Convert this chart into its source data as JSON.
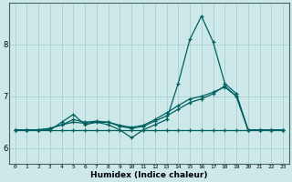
{
  "xlabel": "Humidex (Indice chaleur)",
  "background_color": "#cce8e8",
  "grid_color": "#aacfcf",
  "line_color": "#006060",
  "xlim": [
    -0.5,
    23.5
  ],
  "ylim": [
    5.7,
    8.8
  ],
  "yticks": [
    6,
    7,
    8
  ],
  "xticks": [
    0,
    1,
    2,
    3,
    4,
    5,
    6,
    7,
    8,
    9,
    10,
    11,
    12,
    13,
    14,
    15,
    16,
    17,
    18,
    19,
    20,
    21,
    22,
    23
  ],
  "series": [
    [
      6.35,
      6.35,
      6.35,
      6.35,
      6.35,
      6.35,
      6.35,
      6.35,
      6.35,
      6.35,
      6.35,
      6.35,
      6.35,
      6.35,
      6.35,
      6.35,
      6.35,
      6.35,
      6.35,
      6.35,
      6.35,
      6.35,
      6.35,
      6.35
    ],
    [
      6.35,
      6.35,
      6.35,
      6.35,
      6.5,
      6.65,
      6.45,
      6.5,
      6.45,
      6.35,
      6.2,
      6.35,
      6.45,
      6.55,
      7.25,
      8.1,
      8.55,
      8.05,
      7.25,
      7.05,
      6.35,
      6.35,
      6.35,
      6.35
    ],
    [
      6.35,
      6.35,
      6.35,
      6.38,
      6.45,
      6.55,
      6.5,
      6.52,
      6.5,
      6.42,
      6.38,
      6.42,
      6.52,
      6.62,
      6.75,
      6.88,
      6.95,
      7.05,
      7.2,
      7.0,
      6.35,
      6.35,
      6.35,
      6.35
    ],
    [
      6.35,
      6.35,
      6.35,
      6.38,
      6.45,
      6.5,
      6.48,
      6.5,
      6.5,
      6.44,
      6.4,
      6.44,
      6.55,
      6.68,
      6.82,
      6.95,
      7.0,
      7.08,
      7.18,
      7.0,
      6.35,
      6.35,
      6.35,
      6.35
    ]
  ]
}
